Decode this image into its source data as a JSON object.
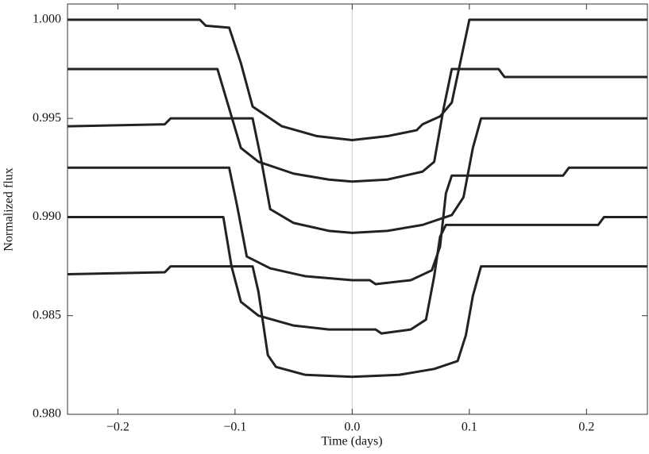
{
  "chart_data": {
    "type": "line",
    "x_label": "Time (days)",
    "y_label": "Normalized flux",
    "xlim": [
      -0.243,
      0.252
    ],
    "ylim": [
      0.98,
      1.0008
    ],
    "xticks": [
      {
        "value": -0.2,
        "label": "−0.2"
      },
      {
        "value": -0.1,
        "label": "−0.1"
      },
      {
        "value": 0,
        "label": "0.0"
      },
      0.1,
      0.2
    ],
    "yticks": [
      {
        "value": 0.98,
        "label": "0.980"
      },
      0.985,
      {
        "value": 0.99,
        "label": "0.990"
      },
      0.995,
      {
        "value": 1,
        "label": "1.000"
      }
    ],
    "zero_line": true,
    "series": [
      {
        "color": "#222222",
        "x": [
          -0.243,
          -0.13,
          -0.125,
          -0.105,
          -0.095,
          -0.085,
          -0.06,
          -0.03,
          0,
          0.03,
          0.055,
          0.06,
          0.075,
          0.085,
          0.1,
          0.252
        ],
        "values": [
          1.0,
          1.0,
          0.9997,
          0.9996,
          0.9978,
          0.9956,
          0.9946,
          0.9941,
          0.9939,
          0.9941,
          0.9944,
          0.9947,
          0.9951,
          0.9958,
          1.0,
          1.0
        ]
      },
      {
        "color": "#222222",
        "x": [
          -0.243,
          -0.115,
          -0.105,
          -0.095,
          -0.08,
          -0.05,
          -0.02,
          0,
          0.03,
          0.06,
          0.07,
          0.078,
          0.085,
          0.125,
          0.13,
          0.252
        ],
        "values": [
          0.9975,
          0.9975,
          0.9955,
          0.9935,
          0.9928,
          0.9922,
          0.9919,
          0.9918,
          0.9919,
          0.9923,
          0.9928,
          0.9955,
          0.9975,
          0.9975,
          0.9971,
          0.9971
        ]
      },
      {
        "color": "#222222",
        "x": [
          -0.243,
          -0.16,
          -0.155,
          -0.085,
          -0.078,
          -0.07,
          -0.05,
          -0.02,
          0,
          0.03,
          0.06,
          0.085,
          0.095,
          0.103,
          0.11,
          0.252
        ],
        "values": [
          0.9946,
          0.9947,
          0.995,
          0.995,
          0.993,
          0.9904,
          0.9897,
          0.9893,
          0.9892,
          0.9893,
          0.9896,
          0.9901,
          0.991,
          0.9935,
          0.995,
          0.995
        ]
      },
      {
        "color": "#222222",
        "x": [
          -0.243,
          -0.105,
          -0.098,
          -0.09,
          -0.07,
          -0.04,
          0,
          0.015,
          0.02,
          0.05,
          0.068,
          0.075,
          0.08,
          0.085,
          0.18,
          0.185,
          0.252
        ],
        "values": [
          0.9925,
          0.9925,
          0.9905,
          0.988,
          0.9874,
          0.987,
          0.9868,
          0.9868,
          0.9866,
          0.9868,
          0.9873,
          0.9885,
          0.9912,
          0.9921,
          0.9921,
          0.9925,
          0.9925
        ]
      },
      {
        "color": "#222222",
        "x": [
          -0.243,
          -0.11,
          -0.103,
          -0.095,
          -0.08,
          -0.05,
          -0.02,
          0.02,
          0.025,
          0.05,
          0.063,
          0.07,
          0.075,
          0.08,
          0.21,
          0.215,
          0.252
        ],
        "values": [
          0.99,
          0.99,
          0.9875,
          0.9857,
          0.985,
          0.9845,
          0.9843,
          0.9843,
          0.9841,
          0.9843,
          0.9848,
          0.987,
          0.989,
          0.9896,
          0.9896,
          0.99,
          0.99
        ]
      },
      {
        "color": "#222222",
        "x": [
          -0.243,
          -0.16,
          -0.155,
          -0.085,
          -0.08,
          -0.072,
          -0.065,
          -0.04,
          0,
          0.04,
          0.07,
          0.09,
          0.097,
          0.103,
          0.11,
          0.252
        ],
        "values": [
          0.9871,
          0.9872,
          0.9875,
          0.9875,
          0.9862,
          0.983,
          0.9824,
          0.982,
          0.9819,
          0.982,
          0.9823,
          0.9827,
          0.984,
          0.986,
          0.9875,
          0.9875
        ]
      }
    ]
  }
}
